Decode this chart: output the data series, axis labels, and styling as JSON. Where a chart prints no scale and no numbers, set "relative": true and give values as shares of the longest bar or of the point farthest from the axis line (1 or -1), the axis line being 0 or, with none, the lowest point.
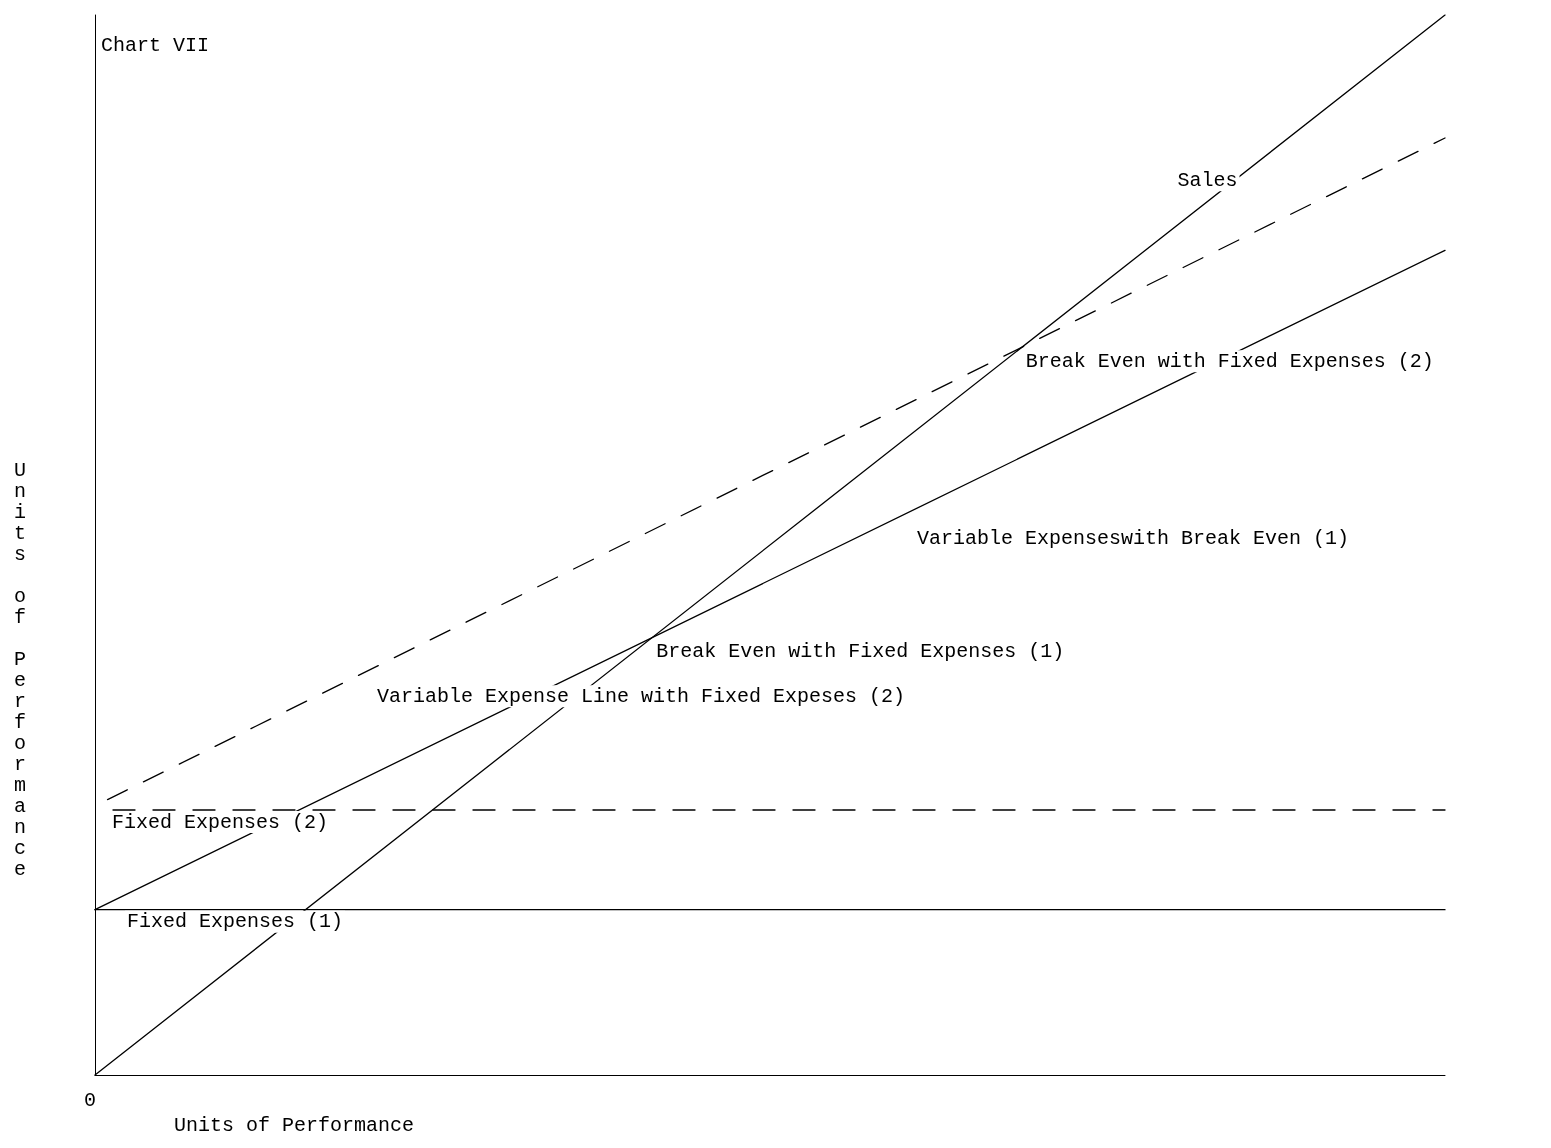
{
  "chart_data": {
    "type": "line",
    "title": "Chart VII",
    "xlabel": "Units of Performance",
    "ylabel": "Units of Performance",
    "relative": true,
    "marker": "none",
    "categories": [
      null,
      null
    ],
    "series": [
      {
        "name": "Sales",
        "color": "#000000",
        "line_style": "solid",
        "values": [
          0,
          1.0
        ]
      },
      {
        "name": "Variable Expenseswith Break Even (1)",
        "color": "#000000",
        "line_style": "solid",
        "values": [
          0.156,
          0.778
        ]
      },
      {
        "name": "Variable Expense Line with Fixed Expeses (2)",
        "color": "#000000",
        "line_style": "dashed",
        "values": [
          0.254,
          0.884
        ]
      },
      {
        "name": "Fixed Expenses (2)",
        "color": "#000000",
        "line_style": "dashed",
        "values": [
          0.25,
          0.25
        ]
      },
      {
        "name": "Fixed Expenses (1)",
        "color": "#000000",
        "line_style": "solid",
        "values": [
          0.156,
          0.156
        ]
      }
    ],
    "annotations": [
      "0",
      "Break Even with Fixed Expenses (1)",
      "Break Even with Fixed Expenses (2)"
    ]
  }
}
